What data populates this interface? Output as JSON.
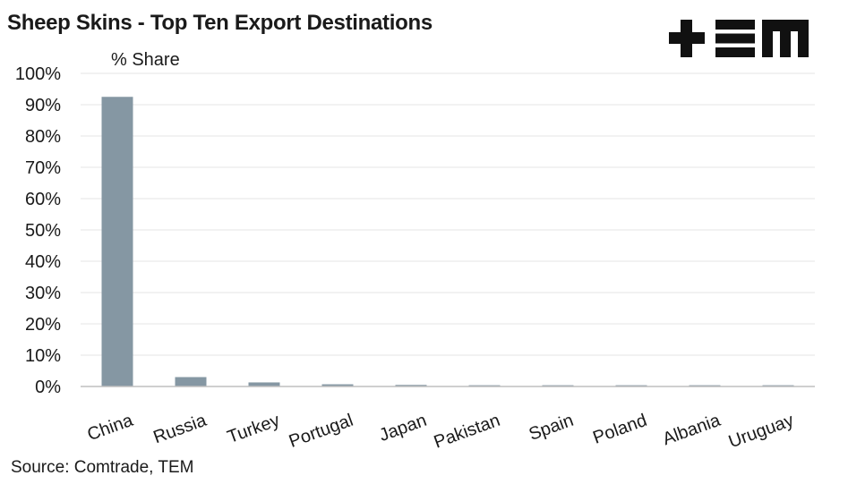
{
  "title": "Sheep Skins - Top Ten Export Destinations",
  "logo_text": "+EM",
  "source": "Source: Comtrade, TEM",
  "colors": {
    "bar": "#8597a3",
    "grid": "#e6e6e6",
    "axis": "#bfbfbf",
    "logo": "#111111"
  },
  "chart_data": {
    "type": "bar",
    "title": "Sheep Skins - Top Ten Export Destinations",
    "ylabel": "% Share",
    "xlabel": "",
    "categories": [
      "China",
      "Russia",
      "Turkey",
      "Portugal",
      "Japan",
      "Pakistan",
      "Spain",
      "Poland",
      "Albania",
      "Uruguay"
    ],
    "values": [
      92.5,
      3.0,
      1.3,
      0.7,
      0.5,
      0.4,
      0.4,
      0.4,
      0.4,
      0.4
    ],
    "ylim": [
      0,
      100
    ],
    "yticks": [
      0,
      10,
      20,
      30,
      40,
      50,
      60,
      70,
      80,
      90,
      100
    ],
    "ytick_labels": [
      "0%",
      "10%",
      "20%",
      "30%",
      "40%",
      "50%",
      "60%",
      "70%",
      "80%",
      "90%",
      "100%"
    ],
    "grid": true,
    "legend": "none"
  }
}
